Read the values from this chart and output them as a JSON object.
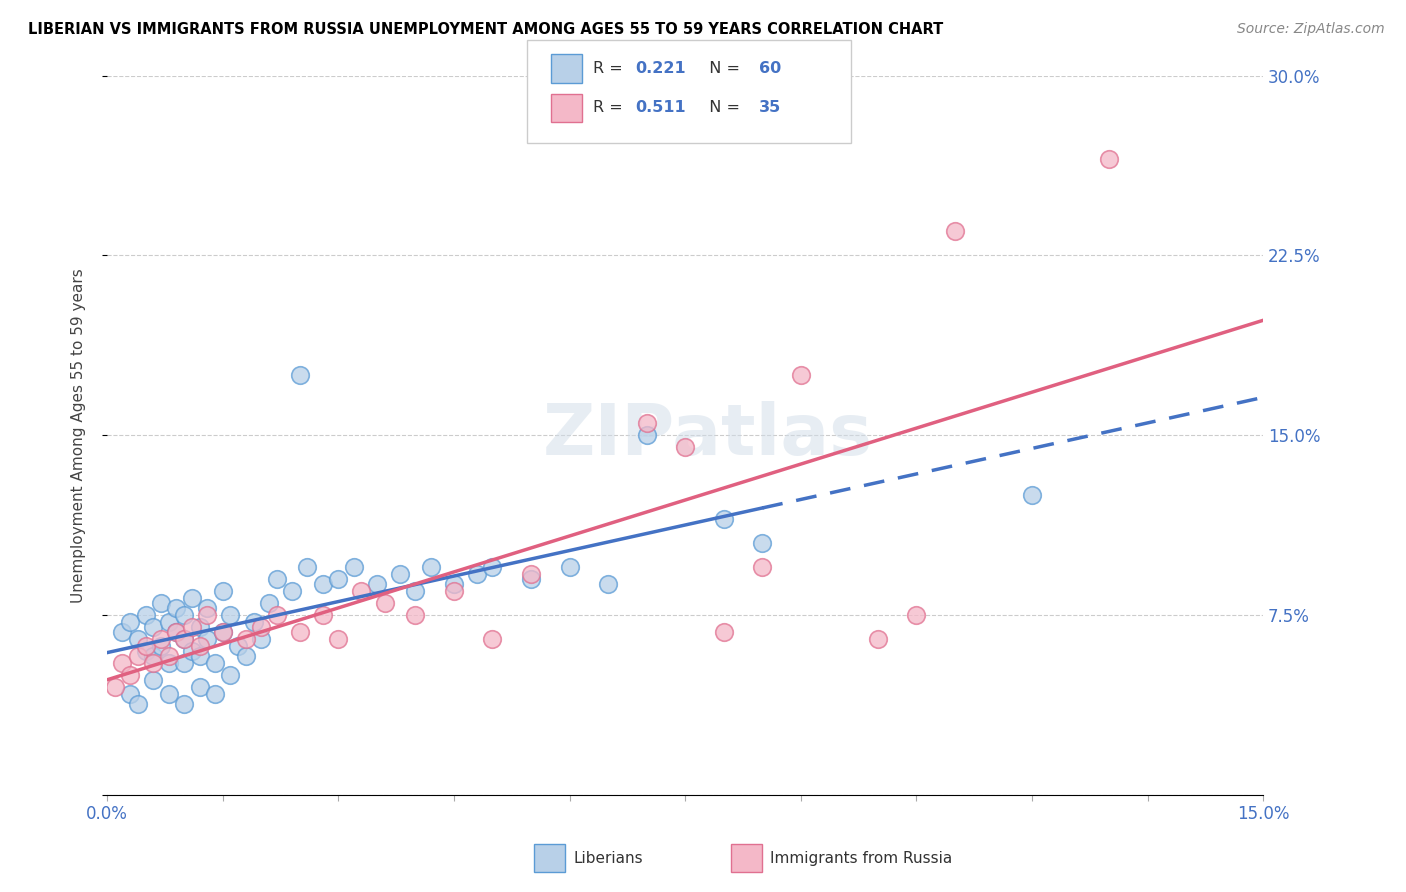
{
  "title": "LIBERIAN VS IMMIGRANTS FROM RUSSIA UNEMPLOYMENT AMONG AGES 55 TO 59 YEARS CORRELATION CHART",
  "source": "Source: ZipAtlas.com",
  "ylabel": "Unemployment Among Ages 55 to 59 years",
  "xlim": [
    0.0,
    0.15
  ],
  "ylim": [
    0.0,
    0.3
  ],
  "ytick_positions": [
    0.0,
    0.075,
    0.15,
    0.225,
    0.3
  ],
  "ytick_labels": [
    "",
    "7.5%",
    "15.0%",
    "22.5%",
    "30.0%"
  ],
  "xtick_positions": [
    0.0,
    0.015,
    0.03,
    0.045,
    0.06,
    0.075,
    0.09,
    0.105,
    0.12,
    0.135,
    0.15
  ],
  "xtick_labels": [
    "0.0%",
    "",
    "",
    "",
    "",
    "",
    "",
    "",
    "",
    "",
    "15.0%"
  ],
  "legend_R1": "0.221",
  "legend_N1": "60",
  "legend_R2": "0.511",
  "legend_N2": "35",
  "color_blue_fill": "#b8d0e8",
  "color_blue_edge": "#5b9bd5",
  "color_blue_line": "#4472c4",
  "color_pink_fill": "#f4b8c8",
  "color_pink_edge": "#e07090",
  "color_pink_line": "#e06080",
  "watermark_text": "ZIPatlas",
  "blue_x": [
    0.002,
    0.003,
    0.004,
    0.005,
    0.005,
    0.006,
    0.006,
    0.007,
    0.007,
    0.008,
    0.008,
    0.009,
    0.009,
    0.01,
    0.01,
    0.01,
    0.011,
    0.011,
    0.012,
    0.012,
    0.013,
    0.013,
    0.014,
    0.015,
    0.015,
    0.016,
    0.017,
    0.018,
    0.019,
    0.02,
    0.021,
    0.022,
    0.024,
    0.026,
    0.028,
    0.03,
    0.032,
    0.035,
    0.038,
    0.04,
    0.042,
    0.045,
    0.048,
    0.05,
    0.055,
    0.06,
    0.065,
    0.07,
    0.08,
    0.085,
    0.003,
    0.004,
    0.006,
    0.008,
    0.01,
    0.012,
    0.014,
    0.016,
    0.025,
    0.12
  ],
  "blue_y": [
    0.068,
    0.072,
    0.065,
    0.06,
    0.075,
    0.058,
    0.07,
    0.062,
    0.08,
    0.055,
    0.072,
    0.068,
    0.078,
    0.055,
    0.065,
    0.075,
    0.06,
    0.082,
    0.058,
    0.07,
    0.065,
    0.078,
    0.055,
    0.068,
    0.085,
    0.075,
    0.062,
    0.058,
    0.072,
    0.065,
    0.08,
    0.09,
    0.085,
    0.095,
    0.088,
    0.09,
    0.095,
    0.088,
    0.092,
    0.085,
    0.095,
    0.088,
    0.092,
    0.095,
    0.09,
    0.095,
    0.088,
    0.15,
    0.115,
    0.105,
    0.042,
    0.038,
    0.048,
    0.042,
    0.038,
    0.045,
    0.042,
    0.05,
    0.175,
    0.125
  ],
  "pink_x": [
    0.001,
    0.002,
    0.003,
    0.004,
    0.005,
    0.006,
    0.007,
    0.008,
    0.009,
    0.01,
    0.011,
    0.012,
    0.013,
    0.015,
    0.018,
    0.02,
    0.022,
    0.025,
    0.028,
    0.03,
    0.033,
    0.036,
    0.04,
    0.045,
    0.05,
    0.055,
    0.07,
    0.075,
    0.08,
    0.085,
    0.09,
    0.1,
    0.105,
    0.11,
    0.13
  ],
  "pink_y": [
    0.045,
    0.055,
    0.05,
    0.058,
    0.062,
    0.055,
    0.065,
    0.058,
    0.068,
    0.065,
    0.07,
    0.062,
    0.075,
    0.068,
    0.065,
    0.07,
    0.075,
    0.068,
    0.075,
    0.065,
    0.085,
    0.08,
    0.075,
    0.085,
    0.065,
    0.092,
    0.155,
    0.145,
    0.068,
    0.095,
    0.175,
    0.065,
    0.075,
    0.235,
    0.265
  ]
}
